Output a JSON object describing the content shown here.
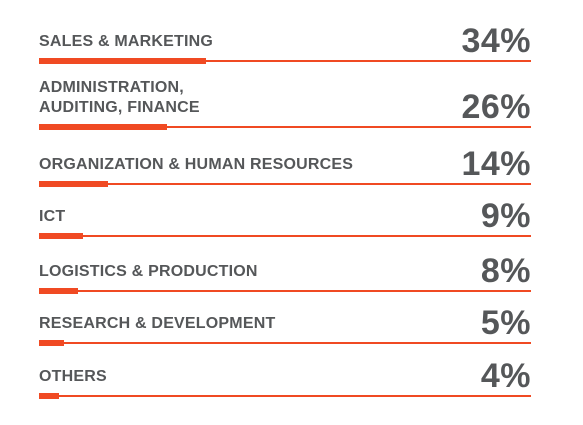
{
  "colors": {
    "accent": "#f04a23",
    "text": "#555759"
  },
  "chart_data": {
    "type": "bar",
    "orientation": "horizontal",
    "categories": [
      "SALES & MARKETING",
      "ADMINISTRATION,\nAUDITING, FINANCE",
      "ORGANIZATION & HUMAN RESOURCES",
      "ICT",
      "LOGISTICS & PRODUCTION",
      "RESEARCH & DEVELOPMENT",
      "OTHERS"
    ],
    "values": [
      34,
      26,
      14,
      9,
      8,
      5,
      4
    ],
    "value_labels": [
      "34%",
      "26%",
      "14%",
      "9%",
      "8%",
      "5%",
      "4%"
    ],
    "title": "",
    "xlabel": "",
    "ylabel": "",
    "unit": "%",
    "xlim": [
      0,
      100
    ],
    "grid": false,
    "legend": "none"
  }
}
